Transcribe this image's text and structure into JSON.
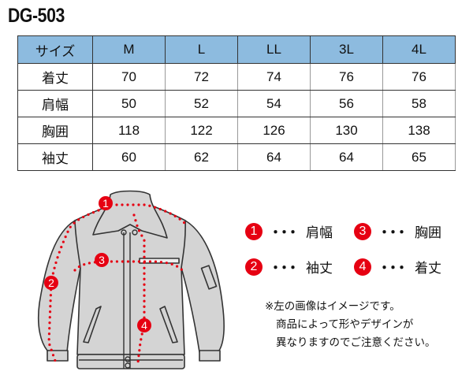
{
  "title": "DG-503",
  "table": {
    "headers": [
      "サイズ",
      "M",
      "L",
      "LL",
      "3L",
      "4L"
    ],
    "rows": [
      {
        "label": "着丈",
        "values": [
          "70",
          "72",
          "74",
          "76",
          "76"
        ]
      },
      {
        "label": "肩幅",
        "values": [
          "50",
          "52",
          "54",
          "56",
          "58"
        ]
      },
      {
        "label": "胸囲",
        "values": [
          "118",
          "122",
          "126",
          "130",
          "138"
        ]
      },
      {
        "label": "袖丈",
        "values": [
          "60",
          "62",
          "64",
          "64",
          "65"
        ]
      }
    ]
  },
  "diagram": {
    "markers": [
      "1",
      "2",
      "3",
      "4"
    ],
    "accent": "#e60012",
    "header_color": "#8dbbdf"
  },
  "legend": [
    {
      "num": "1",
      "dots": "・・・",
      "label": "肩幅"
    },
    {
      "num": "3",
      "dots": "・・・",
      "label": "胸囲"
    },
    {
      "num": "2",
      "dots": "・・・",
      "label": "袖丈"
    },
    {
      "num": "4",
      "dots": "・・・",
      "label": "着丈"
    }
  ],
  "note": [
    "※左の画像はイメージです。",
    "商品によって形やデザインが",
    "異なりますのでご注意ください。"
  ]
}
